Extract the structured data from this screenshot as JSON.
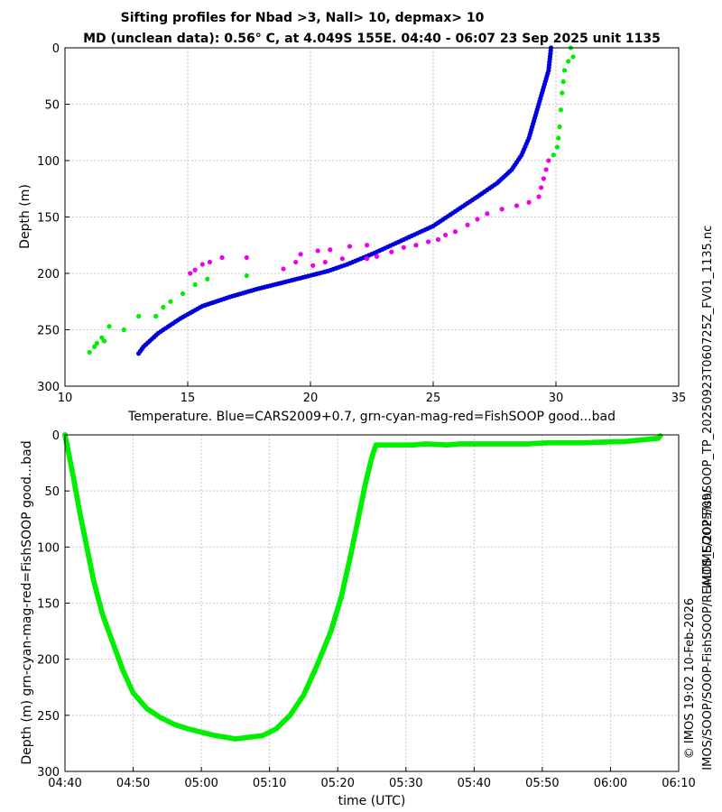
{
  "title": {
    "line1": "Sifting profiles for Nbad >3, Nall> 10, depmax> 10",
    "line2": "MD (unclean data): 0.56° C, at 4.049S 155E. 04:40 - 06:07 23 Sep 2025 unit 1135"
  },
  "side_text": {
    "filename": "IMOS_SOOP-FishSOOP_TP_20250923T060725Z_FV01_1135.nc",
    "credit": "© IMOS 19:02 10-Feb-2026",
    "path": "IMOS/SOOP/SOOP-FishSOOP/REALTIME/2025/09/"
  },
  "colors": {
    "cars": "#0000dd",
    "good": "#00ee00",
    "magenta": "#ee00ee",
    "grid": "#c8c8c8"
  },
  "chart_data": [
    {
      "type": "scatter",
      "name": "temperature-profile",
      "title": "",
      "xlabel": "Temperature. Blue=CARS2009+0.7, grn-cyan-mag-red=FishSOOP good...bad",
      "ylabel": "Depth (m)",
      "xlim": [
        10,
        35
      ],
      "ylim": [
        300,
        0
      ],
      "y_inverted": true,
      "grid": true,
      "xticks": [
        "10",
        "15",
        "20",
        "25",
        "30",
        "35"
      ],
      "yticks": [
        "0",
        "50",
        "100",
        "150",
        "200",
        "250",
        "300"
      ],
      "series": [
        {
          "name": "CARS2009+0.7",
          "color": "blue",
          "points": [
            [
              29.8,
              0
            ],
            [
              29.7,
              20
            ],
            [
              29.5,
              35
            ],
            [
              29.3,
              50
            ],
            [
              29.1,
              65
            ],
            [
              28.9,
              80
            ],
            [
              28.6,
              95
            ],
            [
              28.2,
              108
            ],
            [
              27.6,
              120
            ],
            [
              26.8,
              132
            ],
            [
              25.9,
              145
            ],
            [
              25.0,
              158
            ],
            [
              23.8,
              170
            ],
            [
              22.6,
              182
            ],
            [
              21.5,
              192
            ],
            [
              20.7,
              198
            ],
            [
              19.8,
              203
            ],
            [
              18.9,
              208
            ],
            [
              17.8,
              214
            ],
            [
              16.7,
              221
            ],
            [
              15.6,
              229
            ],
            [
              14.7,
              240
            ],
            [
              13.8,
              253
            ],
            [
              13.2,
              265
            ],
            [
              13.0,
              271
            ]
          ]
        },
        {
          "name": "FishSOOP good",
          "color": "green",
          "points": [
            [
              30.6,
              0
            ],
            [
              30.7,
              8
            ],
            [
              30.5,
              12
            ],
            [
              30.35,
              20
            ],
            [
              30.3,
              30
            ],
            [
              30.25,
              40
            ],
            [
              30.2,
              55
            ],
            [
              30.15,
              70
            ],
            [
              30.1,
              80
            ],
            [
              30.05,
              88
            ],
            [
              29.9,
              95
            ],
            [
              17.4,
              202
            ],
            [
              15.8,
              205
            ],
            [
              15.3,
              210
            ],
            [
              14.8,
              218
            ],
            [
              14.3,
              225
            ],
            [
              14.0,
              230
            ],
            [
              13.7,
              238
            ],
            [
              13.0,
              238
            ],
            [
              12.4,
              250
            ],
            [
              11.8,
              247
            ],
            [
              11.5,
              257
            ],
            [
              11.3,
              262
            ],
            [
              11.0,
              270
            ],
            [
              11.2,
              265
            ],
            [
              11.6,
              260
            ]
          ]
        },
        {
          "name": "FishSOOP mag",
          "color": "magenta",
          "points": [
            [
              29.7,
              100
            ],
            [
              29.6,
              108
            ],
            [
              29.5,
              116
            ],
            [
              29.4,
              124
            ],
            [
              29.3,
              132
            ],
            [
              28.9,
              137
            ],
            [
              28.4,
              140
            ],
            [
              27.8,
              143
            ],
            [
              27.2,
              147
            ],
            [
              26.8,
              152
            ],
            [
              26.4,
              157
            ],
            [
              25.9,
              163
            ],
            [
              25.5,
              166
            ],
            [
              25.2,
              170
            ],
            [
              24.8,
              172
            ],
            [
              24.3,
              175
            ],
            [
              23.8,
              177
            ],
            [
              23.3,
              181
            ],
            [
              22.7,
              185
            ],
            [
              22.3,
              175
            ],
            [
              21.6,
              176
            ],
            [
              20.8,
              179
            ],
            [
              20.3,
              180
            ],
            [
              19.6,
              183
            ],
            [
              19.4,
              190
            ],
            [
              18.9,
              196
            ],
            [
              17.4,
              186
            ],
            [
              16.4,
              186
            ],
            [
              15.9,
              190
            ],
            [
              15.6,
              192
            ],
            [
              15.3,
              197
            ],
            [
              15.1,
              200
            ],
            [
              20.1,
              193
            ],
            [
              20.6,
              190
            ],
            [
              21.3,
              187
            ],
            [
              22.3,
              187
            ]
          ]
        }
      ]
    },
    {
      "type": "scatter",
      "name": "depth-vs-time",
      "title": "",
      "xlabel": "time (UTC)",
      "ylabel": "Depth (m) grn-cyan-mag-red=FishSOOP good...bad",
      "xlim": [
        "04:40",
        "06:10"
      ],
      "ylim": [
        300,
        0
      ],
      "y_inverted": true,
      "grid": true,
      "xticks": [
        "04:40",
        "04:50",
        "05:00",
        "05:10",
        "05:20",
        "05:30",
        "05:40",
        "05:50",
        "06:00",
        "06:10"
      ],
      "yticks": [
        "0",
        "50",
        "100",
        "150",
        "200",
        "250",
        "300"
      ],
      "series": [
        {
          "name": "FishSOOP good",
          "color": "green",
          "points": [
            [
              "04:40",
              0
            ],
            [
              "04:40.5",
              15
            ],
            [
              "04:41.3",
              40
            ],
            [
              "04:42.2",
              70
            ],
            [
              "04:43.2",
              100
            ],
            [
              "04:44.2",
              130
            ],
            [
              "04:45.5",
              160
            ],
            [
              "04:47",
              185
            ],
            [
              "04:48.5",
              210
            ],
            [
              "04:50",
              230
            ],
            [
              "04:52",
              244
            ],
            [
              "04:54",
              252
            ],
            [
              "04:56",
              258
            ],
            [
              "04:58",
              262
            ],
            [
              "05:00",
              265
            ],
            [
              "05:02",
              268
            ],
            [
              "05:05",
              271
            ],
            [
              "05:09",
              268
            ],
            [
              "05:11",
              262
            ],
            [
              "05:13",
              250
            ],
            [
              "05:15",
              232
            ],
            [
              "05:17",
              205
            ],
            [
              "05:19",
              175
            ],
            [
              "05:20.5",
              145
            ],
            [
              "05:21.8",
              110
            ],
            [
              "05:23",
              75
            ],
            [
              "05:24",
              45
            ],
            [
              "05:25",
              20
            ],
            [
              "05:25.6",
              9
            ],
            [
              "05:31",
              9
            ],
            [
              "05:33",
              8
            ],
            [
              "05:36",
              9
            ],
            [
              "05:38",
              8
            ],
            [
              "05:43",
              8
            ],
            [
              "05:48",
              8
            ],
            [
              "05:51",
              7
            ],
            [
              "05:56",
              7
            ],
            [
              "06:01",
              6
            ],
            [
              "06:02",
              6
            ],
            [
              "06:07",
              3
            ],
            [
              "06:07.3",
              1
            ]
          ]
        }
      ]
    }
  ]
}
